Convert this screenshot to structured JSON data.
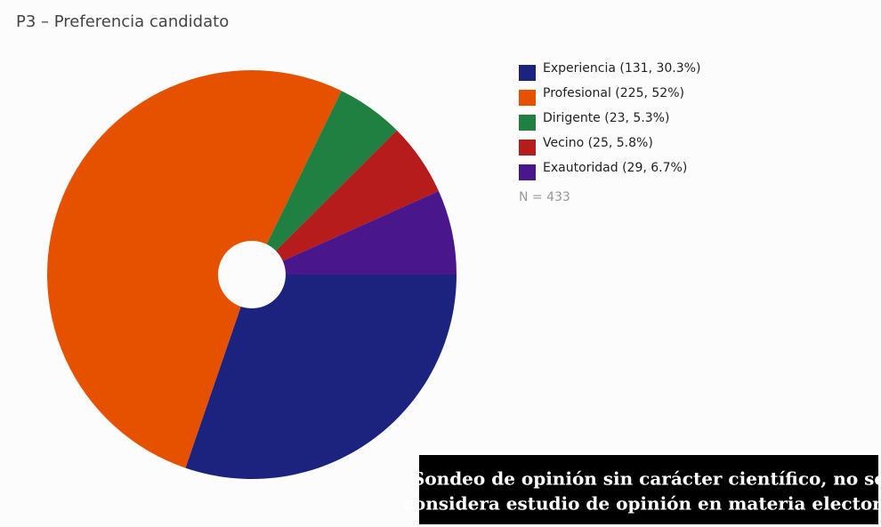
{
  "chart_data": {
    "type": "pie",
    "title": "P3 – Preferencia candidato",
    "categories": [
      "Experiencia (131, 30.3%)",
      "Profesional (225, 52%)",
      "Dirigente (23, 5.3%)",
      "Vecino (25, 5.8%)",
      "Exautoridad (29, 6.7%)"
    ],
    "values": [
      131,
      225,
      23,
      25,
      29
    ],
    "colors": [
      "#1b237e",
      "#e65100",
      "#1f8042",
      "#b71c1c",
      "#4a168c"
    ],
    "annotation": "N = 433",
    "disclaimer": [
      "Sondeo de opinión sin carácter científico, no se",
      "considera estudio de opinión en materia electoral"
    ]
  }
}
